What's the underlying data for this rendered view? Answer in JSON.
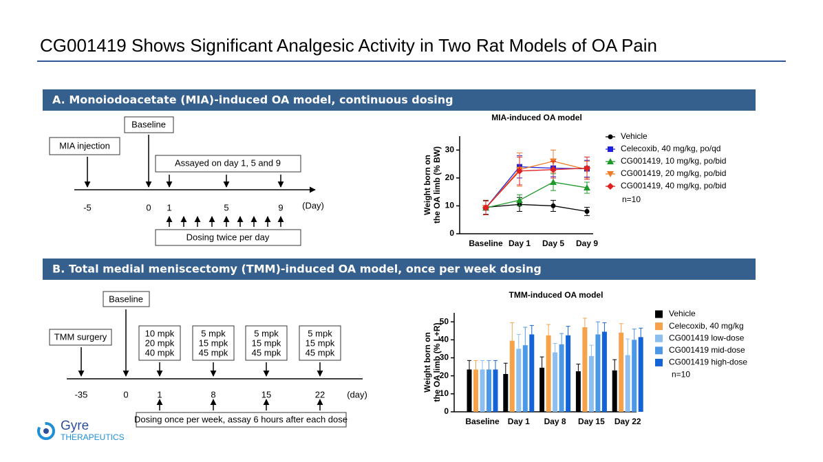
{
  "slide": {
    "title": "CG001419 Shows Significant Analgesic Activity in Two Rat Models of OA Pain",
    "section_a": "A. Monoiodoacetate (MIA)-induced OA model, continuous dosing",
    "section_b": "B. Total medial meniscectomy (TMM)-induced OA model, once per week dosing",
    "timeline_a": {
      "injection": "MIA injection",
      "baseline": "Baseline",
      "assay": "Assayed on day 1, 5 and 9",
      "dosing": "Dosing twice per day",
      "ticks": [
        "-5",
        "0",
        "1",
        "5",
        "9"
      ],
      "unit": "(Day)"
    },
    "timeline_b": {
      "surgery": "TMM surgery",
      "baseline": "Baseline",
      "doses": [
        [
          "10 mpk",
          "20 mpk",
          "40 mpk"
        ],
        [
          "5 mpk",
          "15 mpk",
          "45 mpk"
        ],
        [
          "5 mpk",
          "15 mpk",
          "45 mpk"
        ],
        [
          "5 mpk",
          "15 mpk",
          "45 mpk"
        ]
      ],
      "dosing": "Dosing once per week, assay 6 hours after each dose",
      "ticks": [
        "-35",
        "0",
        "1",
        "8",
        "15",
        "22"
      ],
      "unit": "(day)"
    },
    "logo": {
      "name": "Gyre",
      "tagline": "THERAPEUTICS"
    }
  },
  "chart_data": [
    {
      "type": "line",
      "title": "MIA-induced OA model",
      "ylabel": [
        "Weight born on",
        "the OA limb (% BW)"
      ],
      "categories": [
        "Baseline",
        "Day 1",
        "Day 5",
        "Day 9"
      ],
      "ylim": [
        0,
        35
      ],
      "yticks": [
        0,
        10,
        20,
        30
      ],
      "legend": "right",
      "annotation": "n=10",
      "series": [
        {
          "name": "Vehicle",
          "color": "#000000",
          "marker": "circle",
          "values": [
            9.5,
            10.5,
            10,
            8
          ],
          "errors": [
            2.5,
            2.5,
            2,
            1.5
          ]
        },
        {
          "name": "Celecoxib, 40 mg/kg, po/qd",
          "color": "#1f1fe0",
          "marker": "square",
          "values": [
            9.3,
            24,
            23.5,
            23.3
          ],
          "errors": [
            2.5,
            4,
            3,
            3
          ]
        },
        {
          "name": "CG001419, 10 mg/kg, po/bid",
          "color": "#1e9a2a",
          "marker": "triangle-up",
          "values": [
            9.3,
            12,
            18.5,
            16.5
          ],
          "errors": [
            2.5,
            2,
            3,
            2
          ]
        },
        {
          "name": "CG001419, 20 mg/kg, po/bid",
          "color": "#f07c28",
          "marker": "triangle-down",
          "values": [
            9.3,
            23,
            26,
            23
          ],
          "errors": [
            2.5,
            6,
            4,
            3
          ]
        },
        {
          "name": "CG001419, 40 mg/kg, po/bid",
          "color": "#e02020",
          "marker": "diamond",
          "values": [
            9.3,
            22.5,
            23,
            23.5
          ],
          "errors": [
            2.5,
            5,
            3,
            4
          ]
        }
      ]
    },
    {
      "type": "bar",
      "title": "TMM-induced OA model",
      "ylabel": [
        "Weight born on",
        "the OA limb (% L+R)"
      ],
      "categories": [
        "Baseline",
        "Day 1",
        "Day 8",
        "Day 15",
        "Day 22"
      ],
      "ylim": [
        0,
        55
      ],
      "yticks": [
        0,
        10,
        20,
        30,
        40,
        50
      ],
      "legend": "right",
      "annotation": "n=10",
      "series": [
        {
          "name": "Vehicle",
          "color": "#000000",
          "values": [
            23.5,
            21,
            24.5,
            22.5,
            23
          ],
          "errors": [
            5,
            6,
            6,
            4,
            6
          ]
        },
        {
          "name": "Celecoxib, 40 mg/kg",
          "color": "#f5a24b",
          "values": [
            23.5,
            39.5,
            42.5,
            47,
            44
          ],
          "errors": [
            5,
            10,
            6,
            5,
            5
          ]
        },
        {
          "name": "CG001419 low-dose",
          "color": "#8cbef0",
          "values": [
            23.5,
            35,
            33,
            31,
            31.5
          ],
          "errors": [
            5,
            8,
            5,
            6,
            9
          ]
        },
        {
          "name": "CG001419 mid-dose",
          "color": "#4a98e6",
          "values": [
            23.5,
            37,
            37.5,
            43,
            40
          ],
          "errors": [
            5,
            10,
            6,
            7,
            6
          ]
        },
        {
          "name": "CG001419 high-dose",
          "color": "#1463d6",
          "values": [
            23.5,
            43,
            42.5,
            44.5,
            41.5
          ],
          "errors": [
            5,
            5,
            5,
            5,
            5
          ]
        }
      ]
    }
  ]
}
